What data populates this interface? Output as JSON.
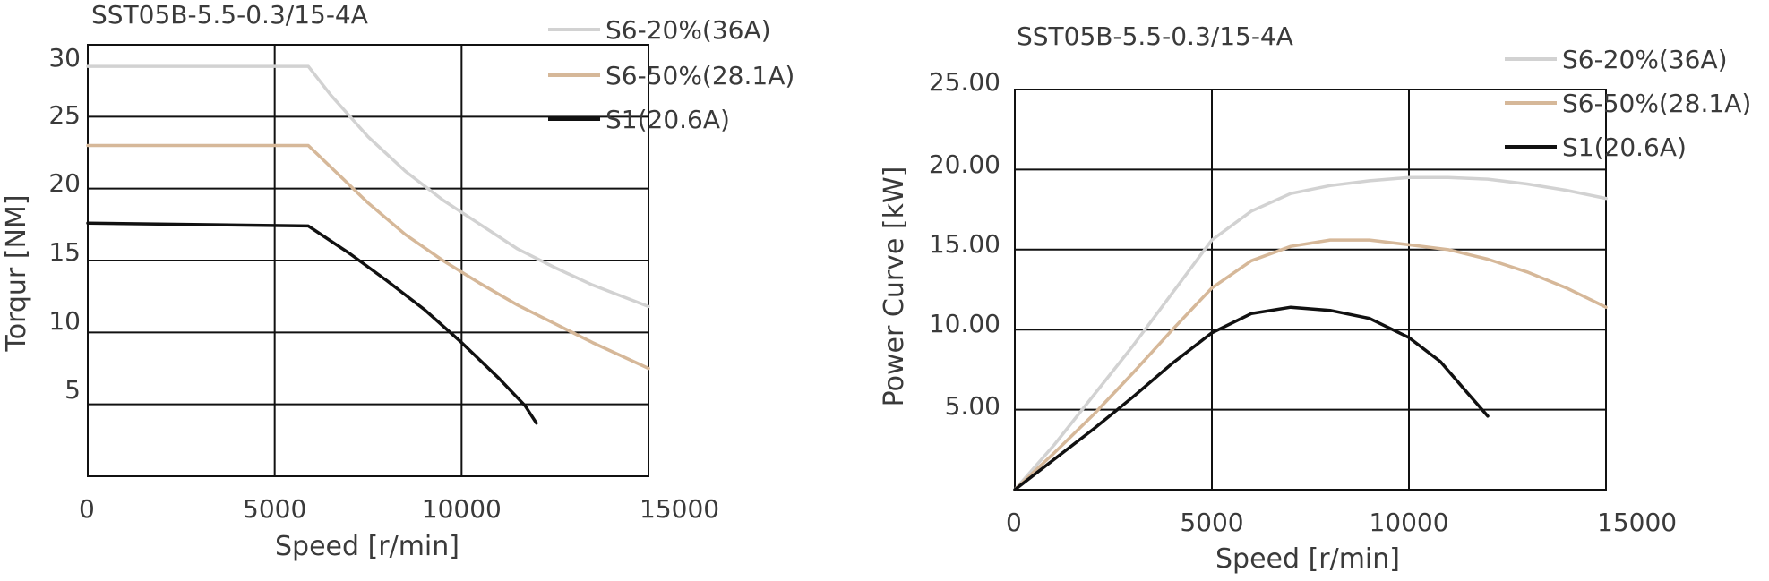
{
  "chart_data": [
    {
      "type": "line",
      "title": "SST05B-5.5-0.3/15-4A",
      "xlabel": "Speed [r/min]",
      "ylabel": "Torqur [NM]",
      "xlim": [
        0,
        15000
      ],
      "ylim": [
        0,
        30
      ],
      "xticks": [
        "0",
        "5000",
        "10000",
        "15000"
      ],
      "yticks": [
        "5",
        "10",
        "15",
        "20",
        "25",
        "30"
      ],
      "grid": true,
      "legend": "top-right",
      "series": [
        {
          "name": "S6-20%(36A)",
          "color": "#d2d2d2",
          "x": [
            0,
            5900,
            6500,
            7500,
            8500,
            9500,
            10500,
            11500,
            12500,
            13500,
            15000
          ],
          "y": [
            28.5,
            28.5,
            26.5,
            23.6,
            21.2,
            19.2,
            17.5,
            15.8,
            14.5,
            13.3,
            11.8
          ]
        },
        {
          "name": "S6-50%(28.1A)",
          "color": "#d6b899",
          "x": [
            0,
            5900,
            6500,
            7500,
            8500,
            9500,
            10500,
            11500,
            12500,
            13500,
            15000
          ],
          "y": [
            23.0,
            23.0,
            21.5,
            19.0,
            16.8,
            15.0,
            13.4,
            11.9,
            10.6,
            9.3,
            7.5
          ]
        },
        {
          "name": "S1(20.6A)",
          "color": "#111111",
          "x": [
            0,
            5900,
            7000,
            8000,
            9000,
            10000,
            11000,
            11700,
            12000
          ],
          "y": [
            17.6,
            17.4,
            15.5,
            13.6,
            11.6,
            9.3,
            6.8,
            4.9,
            3.7
          ]
        }
      ]
    },
    {
      "type": "line",
      "title": "SST05B-5.5-0.3/15-4A",
      "xlabel": "Speed [r/min]",
      "ylabel": "Power Curve [kW]",
      "xlim": [
        0,
        15000
      ],
      "ylim": [
        0,
        25
      ],
      "xticks": [
        "0",
        "5000",
        "10000",
        "15000"
      ],
      "yticks": [
        "5.00",
        "10.00",
        "15.00",
        "20.00",
        "25.00"
      ],
      "grid": true,
      "legend": "top-right",
      "series": [
        {
          "name": "S6-20%(36A)",
          "color": "#d2d2d2",
          "x": [
            0,
            1000,
            2000,
            3000,
            4000,
            5000,
            6000,
            7000,
            8000,
            9000,
            10000,
            11000,
            12000,
            13000,
            14000,
            15000
          ],
          "y": [
            0,
            2.8,
            5.9,
            9.0,
            12.3,
            15.6,
            17.4,
            18.5,
            19.0,
            19.3,
            19.5,
            19.5,
            19.4,
            19.1,
            18.7,
            18.2
          ]
        },
        {
          "name": "S6-50%(28.1A)",
          "color": "#d6b899",
          "x": [
            0,
            1000,
            2000,
            3000,
            4000,
            5000,
            6000,
            7000,
            8000,
            9000,
            10000,
            11000,
            12000,
            13000,
            14000,
            15000
          ],
          "y": [
            0,
            2.3,
            4.7,
            7.3,
            10.0,
            12.6,
            14.3,
            15.2,
            15.6,
            15.6,
            15.3,
            15.0,
            14.4,
            13.6,
            12.6,
            11.4
          ]
        },
        {
          "name": "S1(20.6A)",
          "color": "#111111",
          "x": [
            0,
            1000,
            2000,
            3000,
            4000,
            5000,
            6000,
            7000,
            8000,
            9000,
            10000,
            10800,
            11500,
            12000
          ],
          "y": [
            0,
            1.9,
            3.8,
            5.8,
            7.9,
            9.8,
            11.0,
            11.4,
            11.2,
            10.7,
            9.5,
            8.0,
            6.0,
            4.6
          ]
        }
      ]
    }
  ]
}
